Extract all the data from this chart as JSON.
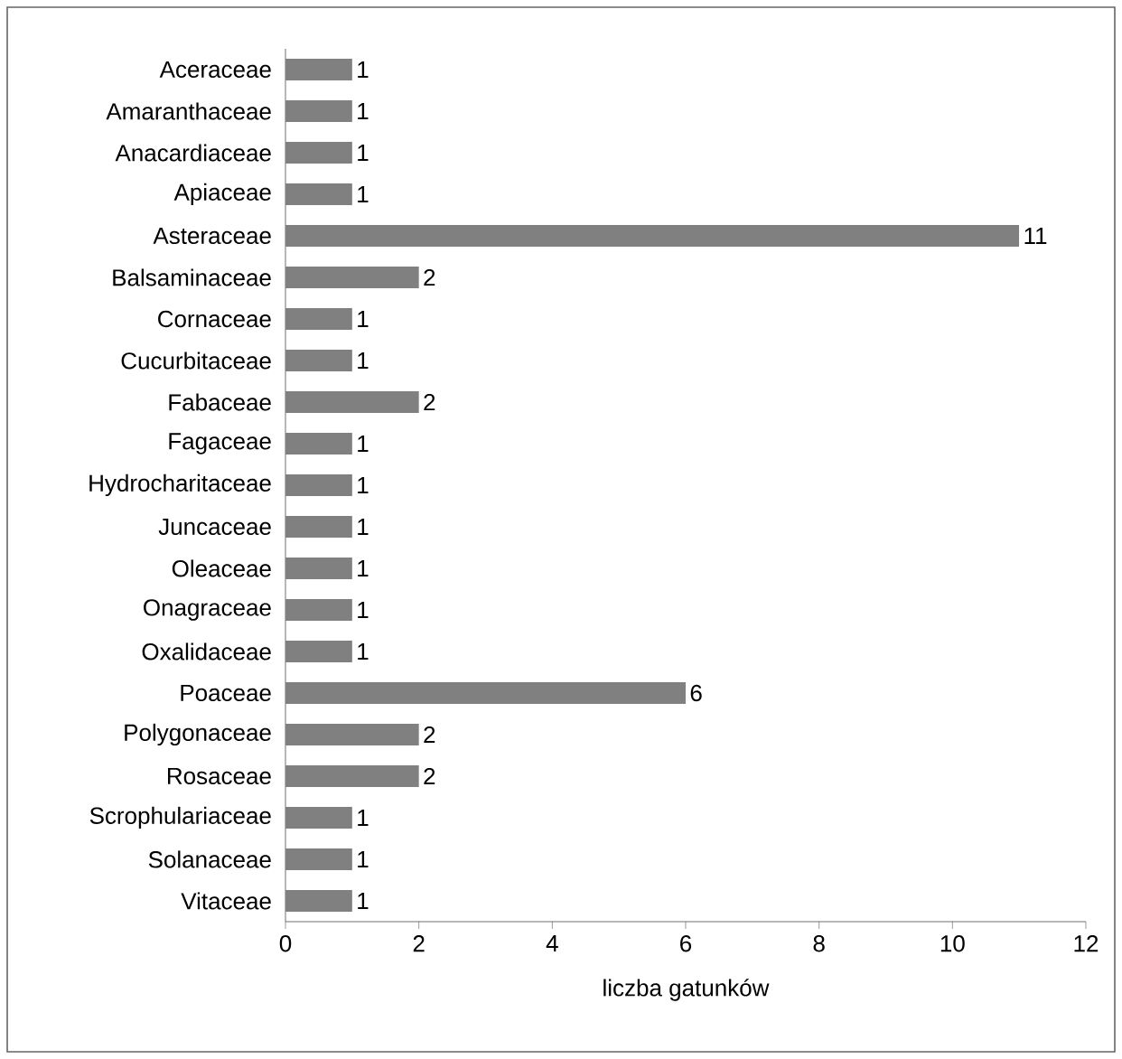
{
  "chart_data": {
    "type": "bar",
    "orientation": "horizontal",
    "xlabel": "liczba gatunków",
    "categories": [
      "Aceraceae",
      "Amaranthaceae",
      "Anacardiaceae",
      "Apiaceae",
      "Asteraceae",
      "Balsaminaceae",
      "Cornaceae",
      "Cucurbitaceae",
      "Fabaceae",
      "Fagaceae",
      "Hydrocharitaceae",
      "Juncaceae",
      "Oleaceae",
      "Onagraceae",
      "Oxalidaceae",
      "Poaceae",
      "Polygonaceae",
      "Rosaceae",
      "Scrophulariaceae",
      "Solanaceae",
      "Vitaceae"
    ],
    "values": [
      1,
      1,
      1,
      1,
      11,
      2,
      1,
      1,
      2,
      1,
      1,
      1,
      1,
      1,
      1,
      6,
      2,
      2,
      1,
      1,
      1
    ],
    "color": "#808080",
    "xlim": [
      0,
      12
    ],
    "xticks": [
      0,
      2,
      4,
      6,
      8,
      10,
      12
    ],
    "data_labels": true
  }
}
